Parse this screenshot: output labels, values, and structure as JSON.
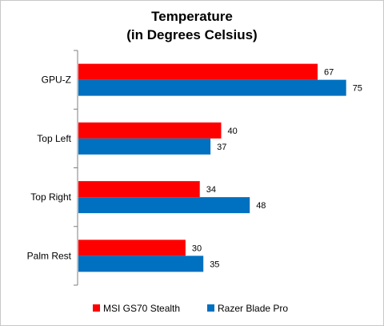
{
  "chart_data": {
    "type": "bar",
    "orientation": "horizontal",
    "title_lines": [
      "Temperature",
      "(in Degrees Celsius)"
    ],
    "categories": [
      "GPU-Z",
      "Top Left",
      "Top Right",
      "Palm Rest"
    ],
    "series": [
      {
        "name": "MSI GS70 Stealth",
        "color": "#ff0000",
        "values": [
          67,
          40,
          34,
          30
        ]
      },
      {
        "name": "Razer Blade Pro",
        "color": "#0070c0",
        "values": [
          75,
          37,
          48,
          35
        ]
      }
    ],
    "xlim": [
      0,
      80
    ],
    "grid": false,
    "legend_position": "bottom"
  }
}
